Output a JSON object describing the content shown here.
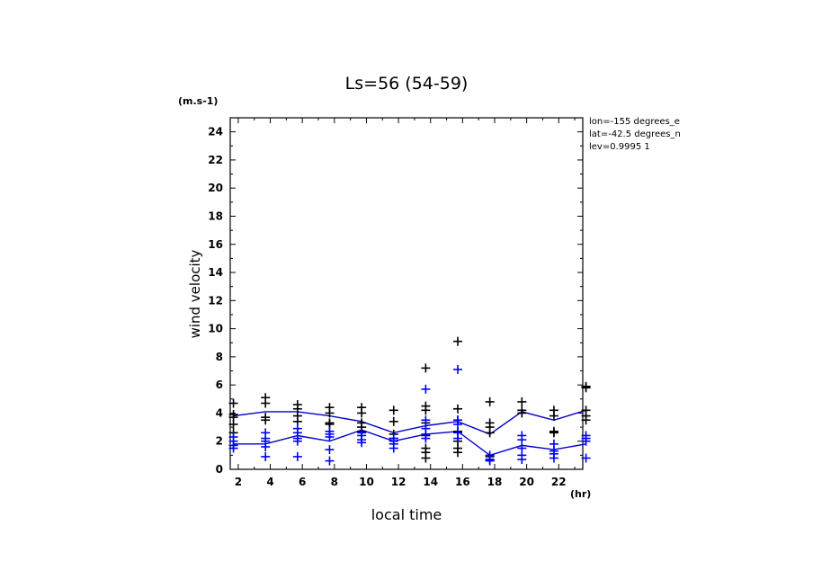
{
  "chart_data": {
    "type": "scatter",
    "title": "Ls=56 (54-59)",
    "xlabel": "local time",
    "ylabel": "wind velocity",
    "x_unit": "(hr)",
    "y_unit": "(m.s-1)",
    "xlim": [
      1.5,
      23.5
    ],
    "ylim": [
      0,
      25
    ],
    "x_ticks": [
      2,
      4,
      6,
      8,
      10,
      12,
      14,
      16,
      18,
      20,
      22
    ],
    "y_ticks": [
      0,
      2,
      4,
      6,
      8,
      10,
      12,
      14,
      16,
      18,
      20,
      22,
      24
    ],
    "grid": false,
    "info_lines": [
      "lon=-155 degrees_e",
      "lat=-42.5 degrees_n",
      "lev=0.9995 1"
    ],
    "series": [
      {
        "color": "#000000",
        "marker": "plus",
        "points": [
          [
            1.7,
            4.7
          ],
          [
            1.7,
            3.9
          ],
          [
            1.7,
            3.7
          ],
          [
            1.7,
            3.2
          ],
          [
            1.7,
            2.6
          ],
          [
            3.7,
            5.1
          ],
          [
            3.7,
            4.7
          ],
          [
            3.7,
            3.7
          ],
          [
            3.7,
            3.5
          ],
          [
            5.7,
            4.6
          ],
          [
            5.7,
            4.3
          ],
          [
            5.7,
            3.8
          ],
          [
            5.7,
            3.4
          ],
          [
            7.7,
            4.4
          ],
          [
            7.7,
            4.0
          ],
          [
            7.7,
            3.3
          ],
          [
            7.7,
            3.2
          ],
          [
            9.7,
            4.4
          ],
          [
            9.7,
            4.0
          ],
          [
            9.7,
            3.3
          ],
          [
            9.7,
            3.0
          ],
          [
            9.7,
            2.7
          ],
          [
            11.7,
            4.2
          ],
          [
            11.7,
            3.4
          ],
          [
            11.7,
            2.5
          ],
          [
            11.7,
            2.2
          ],
          [
            13.7,
            7.2
          ],
          [
            13.7,
            4.5
          ],
          [
            13.7,
            4.2
          ],
          [
            13.7,
            3.3
          ],
          [
            13.7,
            2.4
          ],
          [
            13.7,
            1.5
          ],
          [
            13.7,
            1.2
          ],
          [
            13.7,
            0.8
          ],
          [
            15.7,
            9.1
          ],
          [
            15.7,
            4.3
          ],
          [
            15.7,
            3.5
          ],
          [
            15.7,
            2.7
          ],
          [
            15.7,
            2.0
          ],
          [
            15.7,
            1.5
          ],
          [
            15.7,
            1.2
          ],
          [
            17.7,
            4.8
          ],
          [
            17.7,
            3.3
          ],
          [
            17.7,
            3.0
          ],
          [
            17.7,
            2.6
          ],
          [
            17.7,
            0.9
          ],
          [
            17.7,
            0.7
          ],
          [
            19.7,
            4.8
          ],
          [
            19.7,
            4.2
          ],
          [
            19.7,
            4.0
          ],
          [
            21.7,
            4.2
          ],
          [
            21.7,
            3.8
          ],
          [
            21.7,
            2.7
          ],
          [
            21.7,
            2.6
          ],
          [
            23.7,
            5.9
          ],
          [
            23.7,
            5.8
          ],
          [
            23.7,
            4.2
          ],
          [
            23.7,
            3.8
          ],
          [
            23.7,
            3.5
          ]
        ],
        "line": [
          [
            1.7,
            3.8
          ],
          [
            3.7,
            4.1
          ],
          [
            5.7,
            4.1
          ],
          [
            7.7,
            3.8
          ],
          [
            9.7,
            3.4
          ],
          [
            11.7,
            2.6
          ],
          [
            13.7,
            3.1
          ],
          [
            15.7,
            3.4
          ],
          [
            17.7,
            2.5
          ],
          [
            19.7,
            4.1
          ],
          [
            21.7,
            3.5
          ],
          [
            23.7,
            4.2
          ]
        ]
      },
      {
        "color": "#0000ff",
        "marker": "plus",
        "points": [
          [
            1.7,
            2.3
          ],
          [
            1.7,
            2.0
          ],
          [
            1.7,
            1.7
          ],
          [
            1.7,
            1.5
          ],
          [
            3.7,
            2.6
          ],
          [
            3.7,
            2.2
          ],
          [
            3.7,
            2.0
          ],
          [
            3.7,
            1.6
          ],
          [
            3.7,
            0.9
          ],
          [
            5.7,
            2.9
          ],
          [
            5.7,
            2.6
          ],
          [
            5.7,
            2.2
          ],
          [
            5.7,
            2.0
          ],
          [
            5.7,
            0.9
          ],
          [
            7.7,
            2.7
          ],
          [
            7.7,
            2.5
          ],
          [
            7.7,
            2.3
          ],
          [
            7.7,
            1.4
          ],
          [
            7.7,
            0.6
          ],
          [
            9.7,
            2.6
          ],
          [
            9.7,
            2.4
          ],
          [
            9.7,
            2.1
          ],
          [
            9.7,
            1.9
          ],
          [
            11.7,
            2.2
          ],
          [
            11.7,
            2.0
          ],
          [
            11.7,
            1.8
          ],
          [
            11.7,
            1.5
          ],
          [
            13.7,
            5.7
          ],
          [
            13.7,
            3.5
          ],
          [
            13.7,
            2.9
          ],
          [
            13.7,
            2.5
          ],
          [
            13.7,
            2.2
          ],
          [
            15.7,
            7.1
          ],
          [
            15.7,
            3.5
          ],
          [
            15.7,
            3.2
          ],
          [
            15.7,
            2.6
          ],
          [
            15.7,
            2.2
          ],
          [
            17.7,
            1.0
          ],
          [
            17.7,
            0.7
          ],
          [
            17.7,
            0.6
          ],
          [
            19.7,
            2.4
          ],
          [
            19.7,
            2.1
          ],
          [
            19.7,
            1.5
          ],
          [
            19.7,
            1.0
          ],
          [
            19.7,
            0.7
          ],
          [
            21.7,
            1.8
          ],
          [
            21.7,
            1.3
          ],
          [
            21.7,
            1.1
          ],
          [
            21.7,
            0.8
          ],
          [
            23.7,
            2.4
          ],
          [
            23.7,
            2.2
          ],
          [
            23.7,
            2.0
          ],
          [
            23.7,
            0.8
          ]
        ],
        "line": [
          [
            1.7,
            1.8
          ],
          [
            3.7,
            1.8
          ],
          [
            5.7,
            2.4
          ],
          [
            7.7,
            2.0
          ],
          [
            9.7,
            2.8
          ],
          [
            11.7,
            2.0
          ],
          [
            13.7,
            2.5
          ],
          [
            15.7,
            2.7
          ],
          [
            17.7,
            1.0
          ],
          [
            19.7,
            1.7
          ],
          [
            21.7,
            1.4
          ],
          [
            23.7,
            1.8
          ]
        ]
      }
    ],
    "line_color": "#0000cc"
  }
}
